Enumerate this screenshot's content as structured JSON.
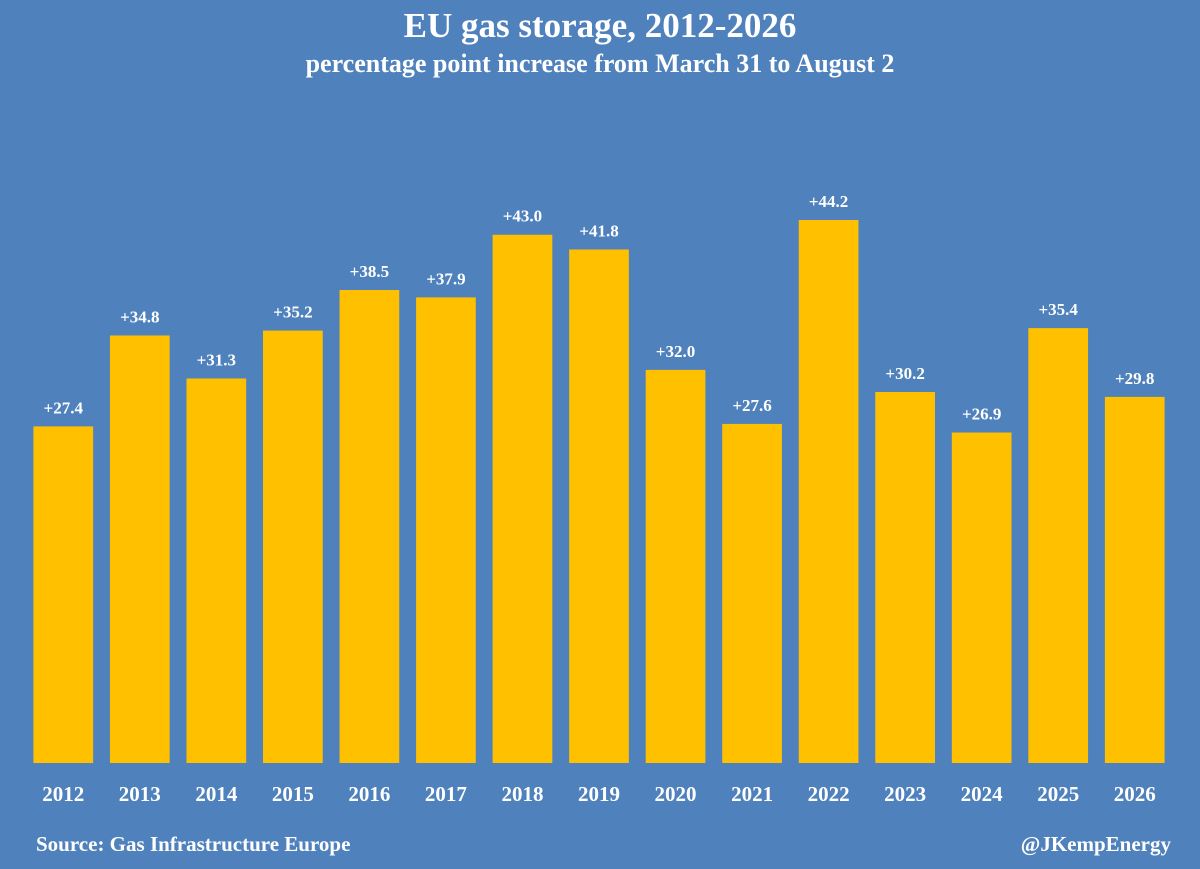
{
  "title": "EU gas storage, 2012-2026",
  "subtitle": "percentage point increase from March 31 to August 2",
  "footer": {
    "source": "Source: Gas Infrastructure Europe",
    "credit": "@JKempEnergy"
  },
  "colors": {
    "background": "#4f81bd",
    "bar": "#ffc000",
    "text": "#ffffff"
  },
  "chart_data": {
    "type": "bar",
    "title": "EU gas storage, 2012-2026",
    "subtitle": "percentage point increase from March 31 to August 2",
    "categories": [
      "2012",
      "2013",
      "2014",
      "2015",
      "2016",
      "2017",
      "2018",
      "2019",
      "2020",
      "2021",
      "2022",
      "2023",
      "2024",
      "2025",
      "2026"
    ],
    "values": [
      27.4,
      34.8,
      31.3,
      35.2,
      38.5,
      37.9,
      43.0,
      41.8,
      32.0,
      27.6,
      44.2,
      30.2,
      26.9,
      35.4,
      29.8
    ],
    "data_labels": [
      "+27.4",
      "+34.8",
      "+31.3",
      "+35.2",
      "+38.5",
      "+37.9",
      "+43.0",
      "+41.8",
      "+32.0",
      "+27.6",
      "+44.2",
      "+30.2",
      "+26.9",
      "+35.4",
      "+29.8"
    ],
    "xlabel": "",
    "ylabel": "",
    "ylim": [
      0,
      44.2
    ],
    "grid": false,
    "legend": "none",
    "axes_visible": false
  }
}
